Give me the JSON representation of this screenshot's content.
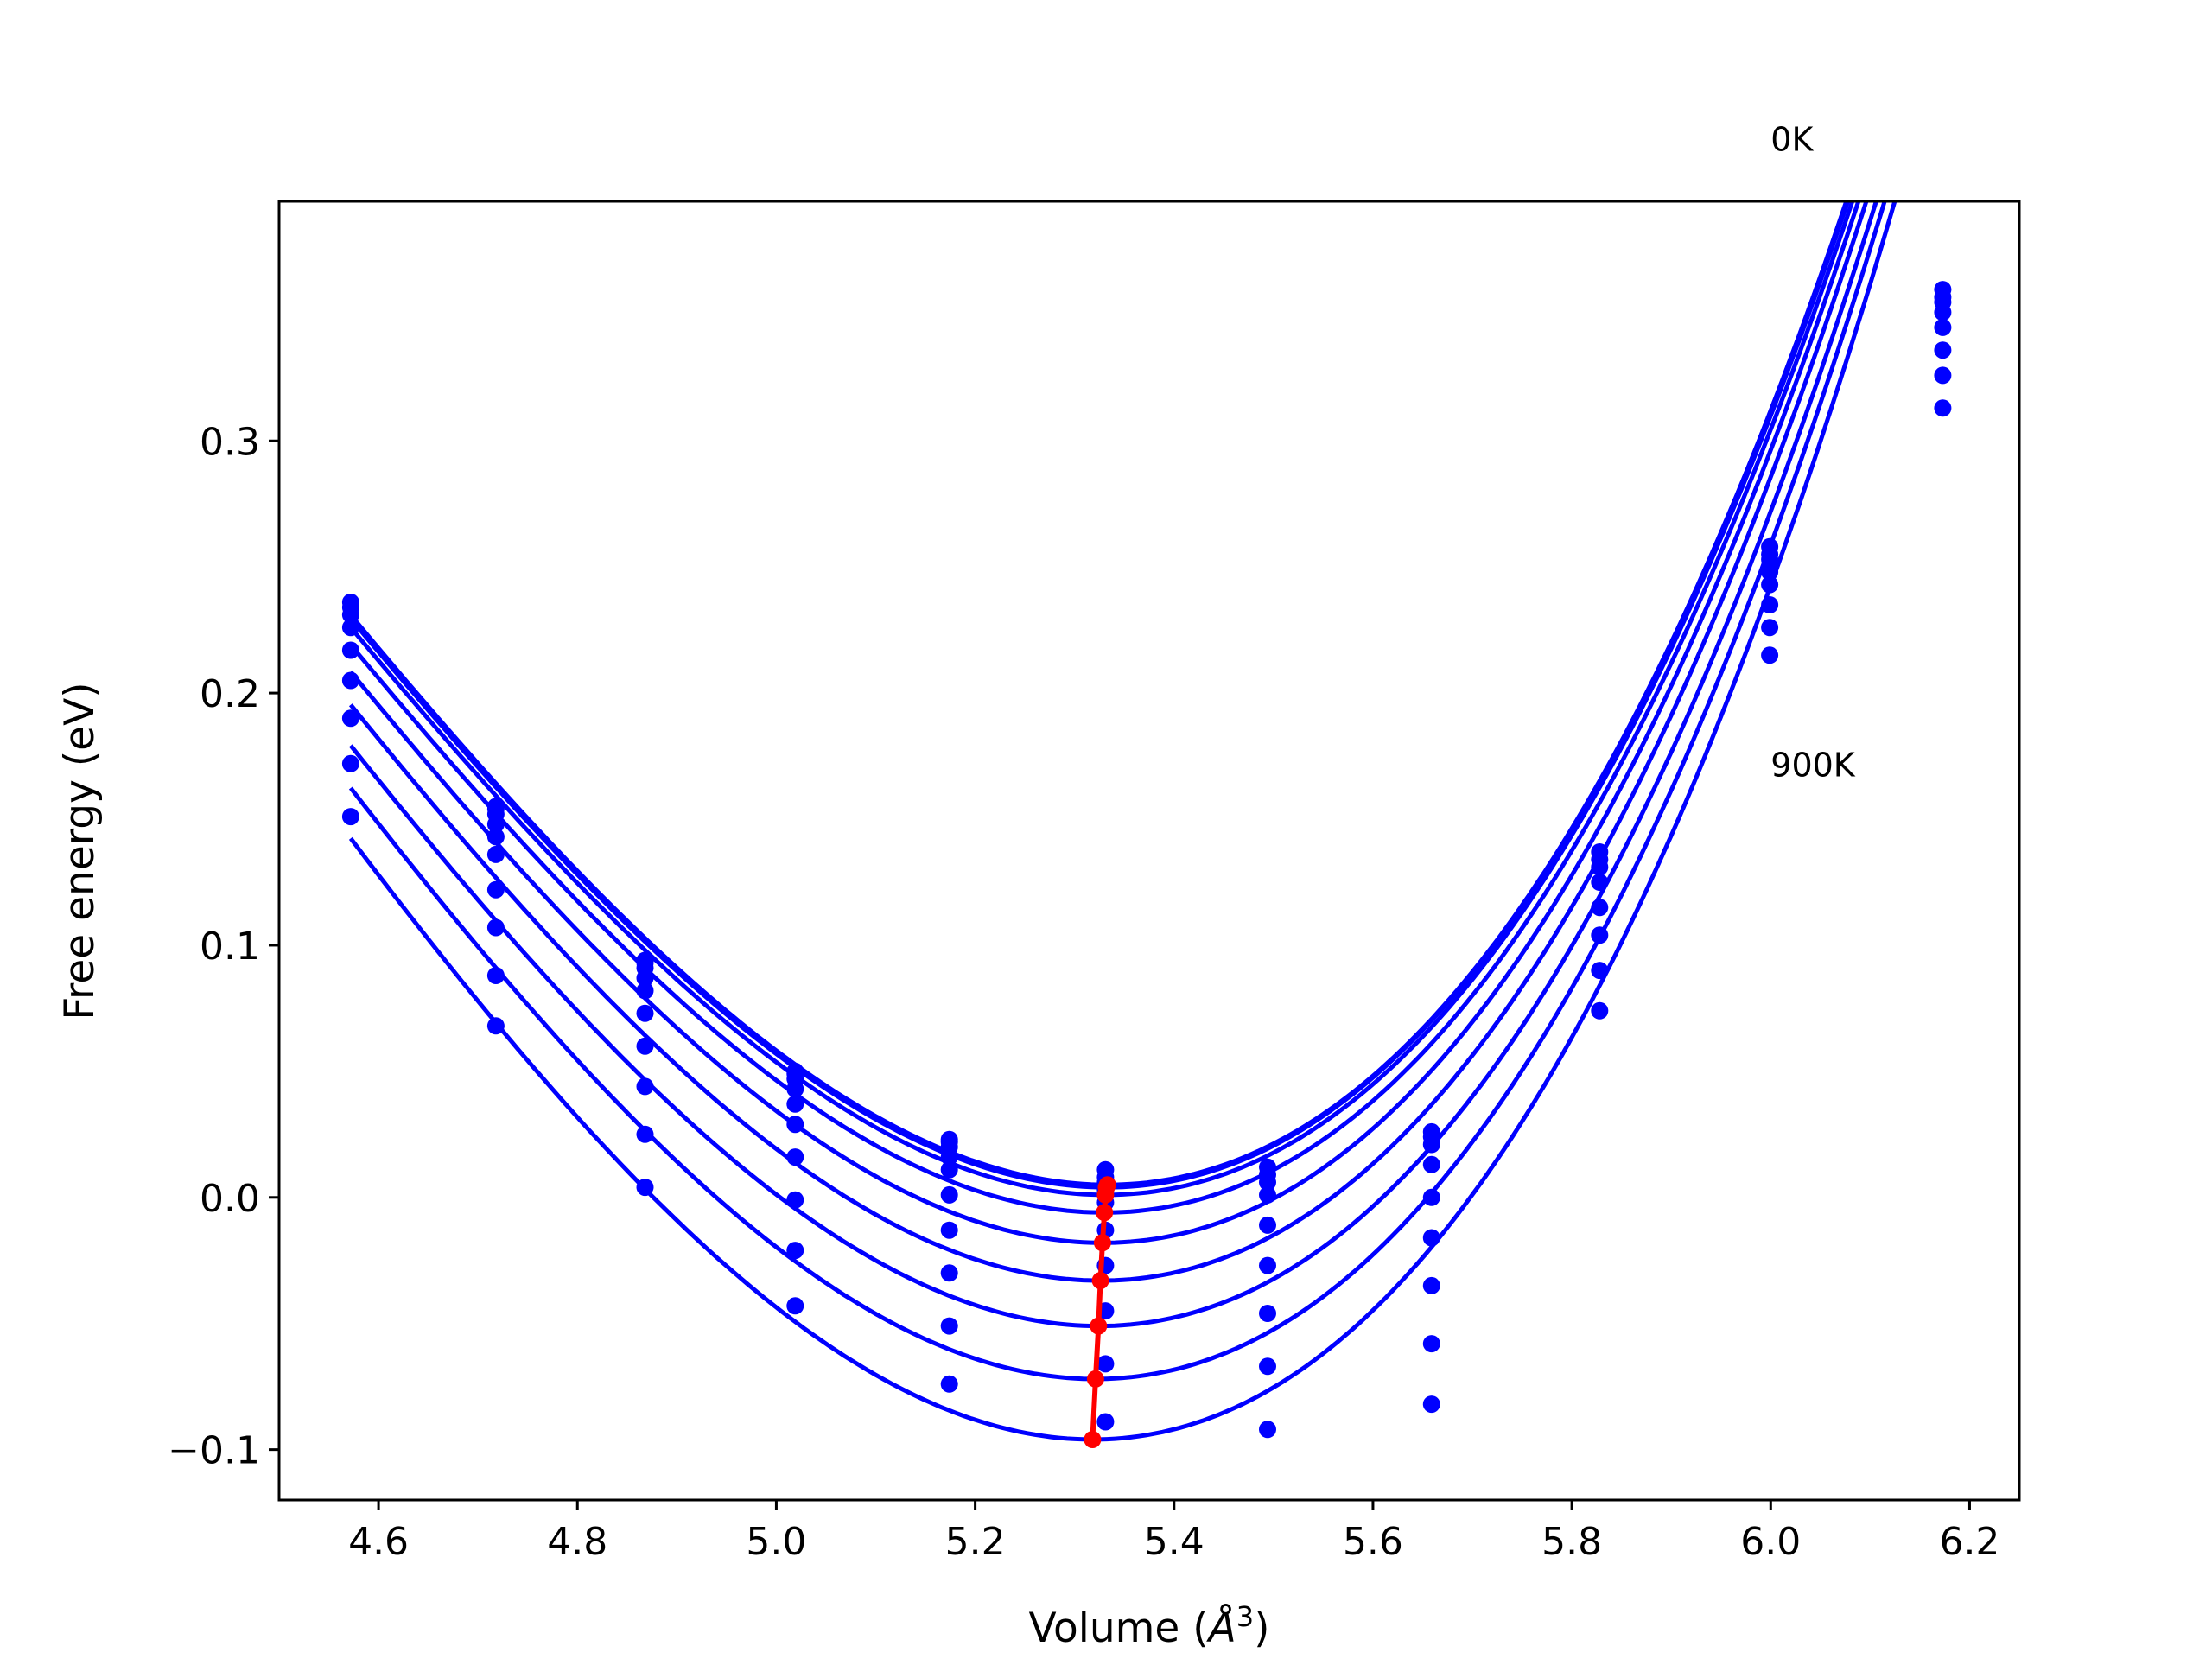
{
  "chart_data": {
    "type": "scatter",
    "title": "",
    "xlabel_prefix": "Volume (",
    "xlabel_unit": "Å",
    "xlabel_exp": "3",
    "xlabel_suffix": ")",
    "ylabel": "Free energy (eV)",
    "xlim": [
      4.5,
      6.25
    ],
    "ylim": [
      -0.12,
      0.395
    ],
    "x_ticks": [
      4.6,
      4.8,
      5.0,
      5.2,
      5.4,
      5.6,
      5.8,
      6.0,
      6.2
    ],
    "x_tick_labels": [
      "4.6",
      "4.8",
      "5.0",
      "5.2",
      "5.4",
      "5.6",
      "5.8",
      "6.0",
      "6.2"
    ],
    "y_ticks": [
      -0.1,
      0.0,
      0.1,
      0.2,
      0.3
    ],
    "y_tick_labels": [
      "−0.1",
      "0.0",
      "0.1",
      "0.2",
      "0.3"
    ],
    "grid": false,
    "annotations": [
      {
        "text": "0K",
        "x": 6.0,
        "y": 0.415
      },
      {
        "text": "900K",
        "x": 6.0,
        "y": 0.167
      }
    ],
    "colors": {
      "fit_curves": "#0000ff",
      "data_points": "#0000ff",
      "minimum_path": "#ff0000"
    },
    "volumes": [
      4.572,
      4.718,
      4.868,
      5.019,
      5.174,
      5.331,
      5.494,
      5.659,
      5.828,
      5.999,
      6.173
    ],
    "series": [
      {
        "fit": {
          "v0": 5.333,
          "e0": 0.005,
          "a": 0.55,
          "b": 0.21
        },
        "points": [
          0.236,
          0.155,
          0.094,
          0.05,
          0.023,
          0.011,
          0.012,
          0.026,
          0.137,
          0.258,
          0.36
        ]
      },
      {
        "fit": {
          "v0": 5.332,
          "e0": 0.004,
          "a": 0.55,
          "b": 0.21
        },
        "points": [
          0.234,
          0.154,
          0.093,
          0.049,
          0.022,
          0.008,
          0.009,
          0.024,
          0.134,
          0.255,
          0.357
        ]
      },
      {
        "fit": {
          "v0": 5.331,
          "e0": 0.001,
          "a": 0.55,
          "b": 0.21
        },
        "points": [
          0.231,
          0.152,
          0.091,
          0.047,
          0.02,
          0.006,
          0.006,
          0.021,
          0.131,
          0.253,
          0.355
        ]
      },
      {
        "fit": {
          "v0": 5.33,
          "e0": -0.006,
          "a": 0.551,
          "b": 0.21
        },
        "points": [
          0.226,
          0.148,
          0.087,
          0.043,
          0.016,
          0.003,
          0.001,
          0.013,
          0.125,
          0.248,
          0.351
        ]
      },
      {
        "fit": {
          "v0": 5.328,
          "e0": -0.018,
          "a": 0.555,
          "b": 0.21
        },
        "points": [
          0.217,
          0.143,
          0.082,
          0.037,
          0.011,
          -0.002,
          -0.011,
          0.0,
          0.115,
          0.243,
          0.345
        ]
      },
      {
        "fit": {
          "v0": 5.326,
          "e0": -0.033,
          "a": 0.56,
          "b": 0.21
        },
        "points": [
          0.205,
          0.136,
          0.073,
          0.029,
          0.001,
          -0.013,
          -0.027,
          -0.016,
          0.104,
          0.235,
          0.336
        ]
      },
      {
        "fit": {
          "v0": 5.324,
          "e0": -0.051,
          "a": 0.565,
          "b": 0.21
        },
        "points": [
          0.19,
          0.122,
          0.06,
          0.016,
          -0.013,
          -0.027,
          -0.046,
          -0.035,
          0.09,
          0.226,
          0.326
        ]
      },
      {
        "fit": {
          "v0": 5.321,
          "e0": -0.072,
          "a": 0.575,
          "b": 0.21
        },
        "points": [
          0.172,
          0.107,
          0.044,
          -0.001,
          -0.03,
          -0.045,
          -0.067,
          -0.058,
          0.074,
          0.215,
          0.313
        ]
      },
      {
        "fit": {
          "v0": 5.318,
          "e0": -0.096,
          "a": 0.585,
          "b": 0.21
        },
        "points": [
          0.151,
          0.088,
          0.025,
          -0.021,
          -0.051,
          -0.066,
          -0.092,
          -0.082,
          null,
          null,
          null
        ]
      },
      {
        "fit": null,
        "points": [
          null,
          0.068,
          0.004,
          -0.043,
          -0.074,
          -0.089,
          null,
          null,
          null,
          null,
          null
        ]
      }
    ],
    "minimum_path": [
      {
        "x": 5.333,
        "y": 0.005
      },
      {
        "x": 5.332,
        "y": 0.004
      },
      {
        "x": 5.331,
        "y": 0.001
      },
      {
        "x": 5.33,
        "y": -0.006
      },
      {
        "x": 5.328,
        "y": -0.018
      },
      {
        "x": 5.326,
        "y": -0.033
      },
      {
        "x": 5.324,
        "y": -0.051
      },
      {
        "x": 5.321,
        "y": -0.072
      },
      {
        "x": 5.318,
        "y": -0.096
      }
    ]
  }
}
